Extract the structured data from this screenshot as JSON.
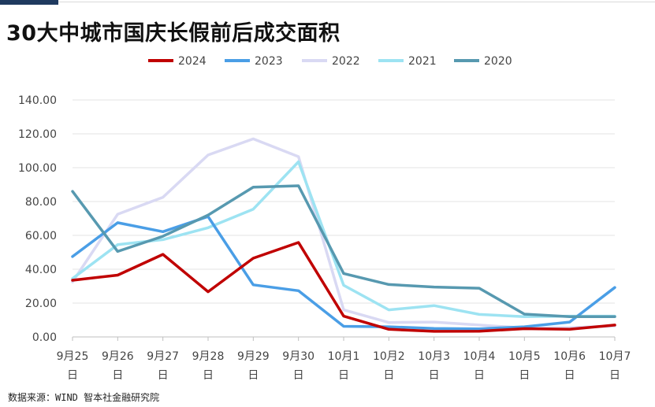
{
  "header": {
    "title": "30大中城市国庆长假前后成交面积"
  },
  "footer": {
    "source": "数据来源：WIND 智本社金融研究院"
  },
  "chart_data": {
    "type": "line",
    "title": "30大中城市国庆长假前后成交面积",
    "xlabel": "",
    "ylabel": "",
    "categories": [
      [
        "9月25",
        "日"
      ],
      [
        "9月26",
        "日"
      ],
      [
        "9月27",
        "日"
      ],
      [
        "9月28",
        "日"
      ],
      [
        "9月29",
        "日"
      ],
      [
        "9月30",
        "日"
      ],
      [
        "10月1",
        "日"
      ],
      [
        "10月2",
        "日"
      ],
      [
        "10月3",
        "日"
      ],
      [
        "10月4",
        "日"
      ],
      [
        "10月5",
        "日"
      ],
      [
        "10月6",
        "日"
      ],
      [
        "10月7",
        "日"
      ]
    ],
    "ylim": [
      0,
      140
    ],
    "y_ticks": [
      "0.00",
      "20.00",
      "40.00",
      "60.00",
      "80.00",
      "100.00",
      "120.00",
      "140.00"
    ],
    "grid": true,
    "legend_position": "top",
    "series": [
      {
        "name": "2024",
        "color": "#c00000",
        "values": [
          33.5,
          36.5,
          48.8,
          26.7,
          46.5,
          55.8,
          12.3,
          4.5,
          3.3,
          3.4,
          4.9,
          4.5,
          7.0
        ]
      },
      {
        "name": "2023",
        "color": "#4a9ee6",
        "values": [
          47.5,
          67.5,
          62.2,
          71.1,
          30.8,
          27.3,
          6.3,
          6.0,
          5.0,
          4.8,
          6.0,
          8.8,
          29.2
        ]
      },
      {
        "name": "2022",
        "color": "#d9d9f3",
        "values": [
          32.5,
          72.5,
          82.5,
          107.5,
          117.0,
          106.5,
          16.0,
          8.5,
          8.8,
          7.0,
          5.3,
          5.5,
          6.5
        ]
      },
      {
        "name": "2021",
        "color": "#9de3f2",
        "values": [
          34.5,
          54.5,
          57.5,
          64.5,
          75.5,
          103.5,
          30.5,
          16.0,
          18.5,
          13.3,
          12.0,
          12.3,
          12.3
        ]
      },
      {
        "name": "2020",
        "color": "#5799b0",
        "values": [
          86.0,
          50.5,
          59.5,
          72.0,
          88.5,
          89.3,
          37.5,
          31.0,
          29.5,
          28.8,
          13.5,
          12.0,
          12.0
        ]
      }
    ]
  }
}
